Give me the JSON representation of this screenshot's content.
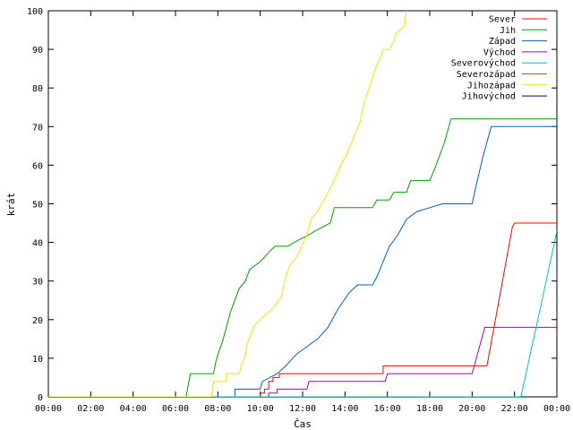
{
  "chart_data": {
    "type": "line",
    "title": "",
    "xlabel": "Čas",
    "ylabel": "krát",
    "xlim": [
      0,
      24
    ],
    "ylim": [
      0,
      100
    ],
    "x_ticks": [
      "00:00",
      "02:00",
      "04:00",
      "06:00",
      "08:00",
      "10:00",
      "12:00",
      "14:00",
      "16:00",
      "18:00",
      "20:00",
      "22:00",
      "00:00"
    ],
    "y_ticks": [
      0,
      10,
      20,
      30,
      40,
      50,
      60,
      70,
      80,
      90,
      100
    ],
    "grid": false,
    "legend_position": "top-right",
    "series": [
      {
        "name": "Sever",
        "color": "#ff0000",
        "points": [
          [
            0,
            0
          ],
          [
            10.0,
            0
          ],
          [
            10.0,
            1
          ],
          [
            10.2,
            1
          ],
          [
            10.2,
            2
          ],
          [
            10.4,
            2
          ],
          [
            10.4,
            4
          ],
          [
            10.6,
            4
          ],
          [
            10.6,
            5
          ],
          [
            10.9,
            5
          ],
          [
            10.9,
            6
          ],
          [
            15.8,
            6
          ],
          [
            15.8,
            8
          ],
          [
            20.7,
            8
          ],
          [
            21.9,
            44
          ],
          [
            22.0,
            45
          ],
          [
            24,
            45
          ]
        ]
      },
      {
        "name": "Jih",
        "color": "#00a000",
        "points": [
          [
            0,
            0
          ],
          [
            6.5,
            0
          ],
          [
            6.7,
            6
          ],
          [
            7.8,
            6
          ],
          [
            7.9,
            9
          ],
          [
            8.0,
            11
          ],
          [
            8.2,
            14
          ],
          [
            8.4,
            18
          ],
          [
            8.6,
            22
          ],
          [
            8.8,
            25
          ],
          [
            9.0,
            28
          ],
          [
            9.3,
            30
          ],
          [
            9.5,
            33
          ],
          [
            10.0,
            35
          ],
          [
            10.5,
            38
          ],
          [
            10.7,
            39
          ],
          [
            11.3,
            39
          ],
          [
            11.6,
            40
          ],
          [
            12.3,
            42
          ],
          [
            12.6,
            43
          ],
          [
            13.3,
            45
          ],
          [
            13.5,
            49
          ],
          [
            15.3,
            49
          ],
          [
            15.5,
            51
          ],
          [
            16.1,
            51
          ],
          [
            16.3,
            53
          ],
          [
            16.9,
            53
          ],
          [
            17.1,
            56
          ],
          [
            18.0,
            56
          ],
          [
            18.3,
            60
          ],
          [
            18.5,
            63
          ],
          [
            18.7,
            66
          ],
          [
            18.9,
            70
          ],
          [
            19.0,
            72
          ],
          [
            24,
            72
          ]
        ]
      },
      {
        "name": "Západ",
        "color": "#0060c0",
        "points": [
          [
            0,
            0
          ],
          [
            8.8,
            0
          ],
          [
            8.8,
            2
          ],
          [
            10.0,
            2
          ],
          [
            10.1,
            4
          ],
          [
            10.8,
            6
          ],
          [
            11.2,
            8
          ],
          [
            11.7,
            11
          ],
          [
            12.2,
            13
          ],
          [
            12.7,
            15
          ],
          [
            13.2,
            18
          ],
          [
            13.7,
            23
          ],
          [
            14.2,
            27
          ],
          [
            14.6,
            29
          ],
          [
            15.3,
            29
          ],
          [
            15.5,
            31
          ],
          [
            15.8,
            35
          ],
          [
            16.1,
            39
          ],
          [
            16.5,
            42
          ],
          [
            16.9,
            46
          ],
          [
            17.4,
            48
          ],
          [
            18.0,
            49
          ],
          [
            18.6,
            50
          ],
          [
            20.0,
            50
          ],
          [
            20.2,
            55
          ],
          [
            20.5,
            62
          ],
          [
            20.7,
            66
          ],
          [
            20.8,
            68
          ],
          [
            20.9,
            70
          ],
          [
            24,
            70
          ]
        ]
      },
      {
        "name": "Východ",
        "color": "#a000c0",
        "points": [
          [
            0,
            0
          ],
          [
            10.4,
            0
          ],
          [
            10.4,
            1
          ],
          [
            10.8,
            1
          ],
          [
            10.8,
            2
          ],
          [
            12.2,
            2
          ],
          [
            12.3,
            4
          ],
          [
            15.9,
            4
          ],
          [
            16.0,
            6
          ],
          [
            20.0,
            6
          ],
          [
            20.6,
            18
          ],
          [
            24,
            18
          ]
        ]
      },
      {
        "name": "Severovýchod",
        "color": "#00c0c0",
        "points": [
          [
            0,
            0
          ],
          [
            22.3,
            0
          ],
          [
            23.3,
            25
          ],
          [
            24,
            43
          ]
        ]
      },
      {
        "name": "Severozápad",
        "color": "#c06000",
        "points": []
      },
      {
        "name": "Jihozápad",
        "color": "#e8e800",
        "points": [
          [
            0,
            0
          ],
          [
            7.7,
            0
          ],
          [
            7.8,
            4
          ],
          [
            8.4,
            4
          ],
          [
            8.4,
            6
          ],
          [
            9.0,
            6
          ],
          [
            9.1,
            8
          ],
          [
            9.3,
            11
          ],
          [
            9.4,
            14
          ],
          [
            9.6,
            17
          ],
          [
            9.8,
            19
          ],
          [
            10.2,
            21
          ],
          [
            10.6,
            23
          ],
          [
            11.0,
            26
          ],
          [
            11.2,
            31
          ],
          [
            11.4,
            34
          ],
          [
            11.8,
            37
          ],
          [
            12.2,
            42
          ],
          [
            12.4,
            46
          ],
          [
            12.7,
            48
          ],
          [
            13.0,
            51
          ],
          [
            13.4,
            55
          ],
          [
            13.8,
            60
          ],
          [
            14.1,
            63
          ],
          [
            14.4,
            67
          ],
          [
            14.7,
            71
          ],
          [
            14.9,
            76
          ],
          [
            15.2,
            81
          ],
          [
            15.5,
            86
          ],
          [
            15.7,
            88
          ],
          [
            15.8,
            90
          ],
          [
            16.1,
            90
          ],
          [
            16.3,
            92
          ],
          [
            16.4,
            94
          ],
          [
            16.8,
            96
          ],
          [
            16.9,
            100
          ]
        ]
      },
      {
        "name": "Jihovýchod",
        "color": "#000080",
        "points": []
      }
    ]
  }
}
